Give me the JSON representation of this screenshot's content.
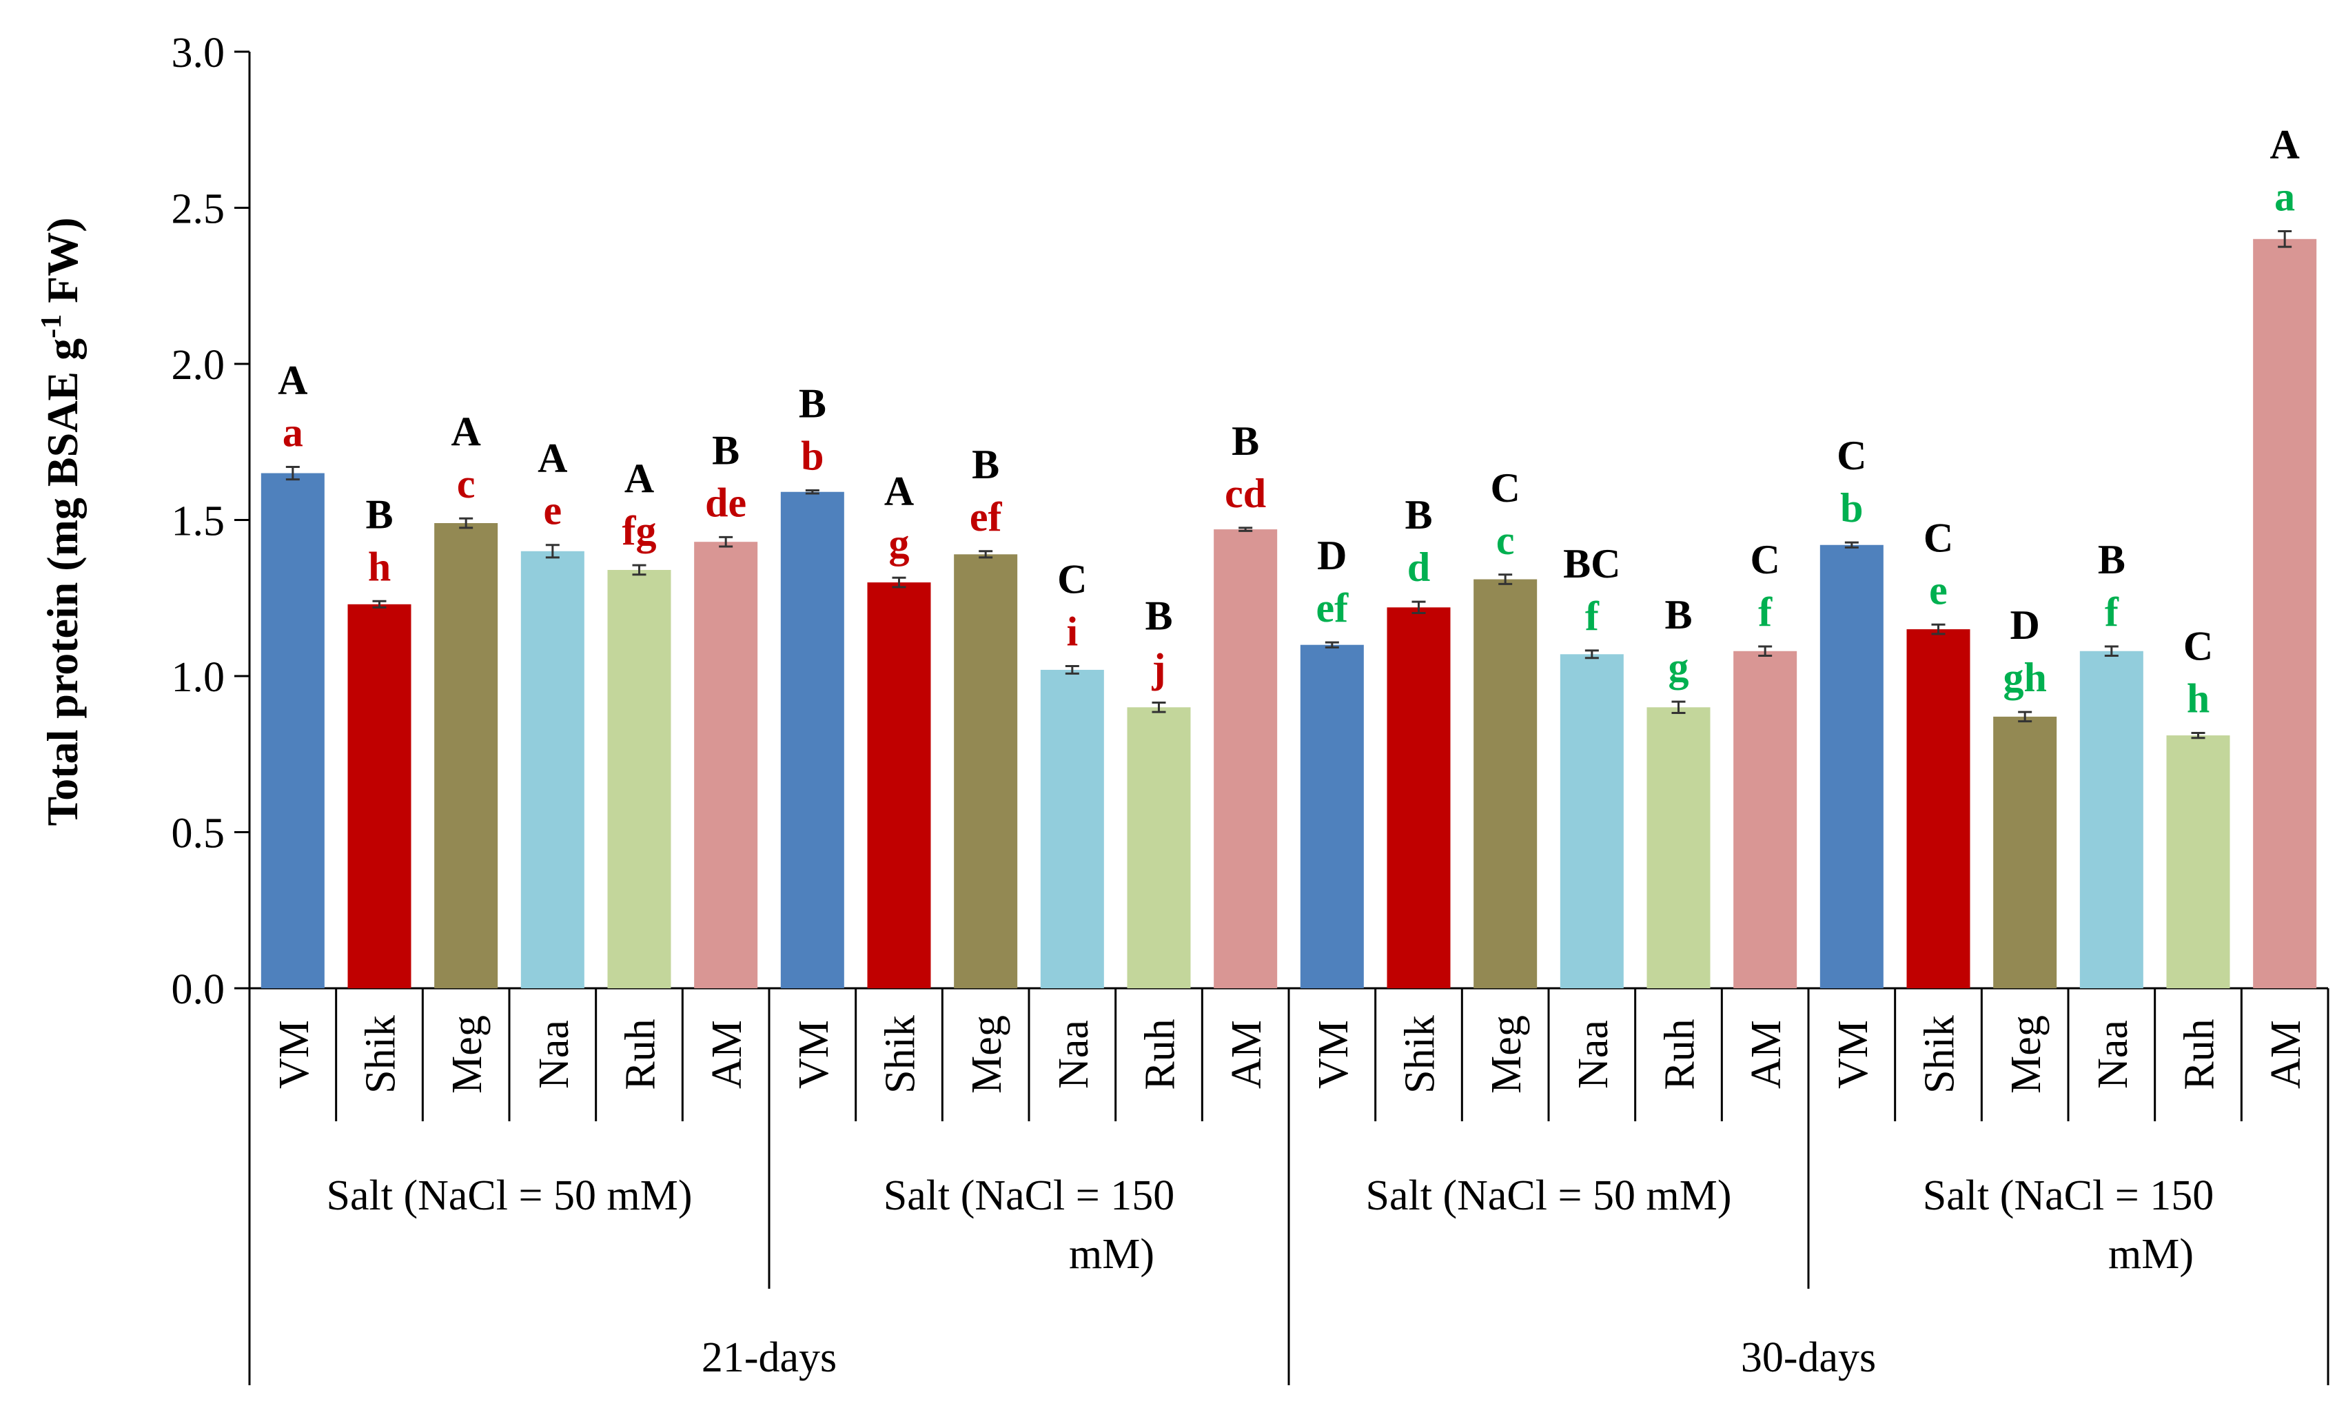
{
  "chart_data": {
    "type": "bar",
    "ylabel": "Total protein  (mg BSAE g",
    "ylabel_sup": "-1",
    "ylabel_end": " FW)",
    "ylim": [
      0,
      3.0
    ],
    "yticks": [
      "0.0",
      "0.5",
      "1.0",
      "1.5",
      "2.0",
      "2.5",
      "3.0"
    ],
    "categories": [
      "VM",
      "Shik",
      "Meg",
      "Naa",
      "Ruh",
      "AM",
      "VM",
      "Shik",
      "Meg",
      "Naa",
      "Ruh",
      "AM",
      "VM",
      "Shik",
      "Meg",
      "Naa",
      "Ruh",
      "AM",
      "VM",
      "Shik",
      "Meg",
      "Naa",
      "Ruh",
      "AM"
    ],
    "values": [
      1.65,
      1.23,
      1.49,
      1.4,
      1.34,
      1.43,
      1.59,
      1.3,
      1.39,
      1.02,
      0.9,
      1.47,
      1.1,
      1.22,
      1.31,
      1.07,
      0.9,
      1.08,
      1.42,
      1.15,
      0.87,
      1.08,
      0.81,
      2.4
    ],
    "errors": [
      0.02,
      0.01,
      0.015,
      0.02,
      0.015,
      0.015,
      0.005,
      0.015,
      0.01,
      0.012,
      0.015,
      0.005,
      0.008,
      0.018,
      0.015,
      0.012,
      0.018,
      0.015,
      0.008,
      0.015,
      0.015,
      0.015,
      0.008,
      0.025
    ],
    "bar_colors": [
      "#4f81bd",
      "#c00000",
      "#938953",
      "#92cddc",
      "#c3d69b",
      "#d99694",
      "#4f81bd",
      "#c00000",
      "#938953",
      "#92cddc",
      "#c3d69b",
      "#d99694",
      "#4f81bd",
      "#c00000",
      "#938953",
      "#92cddc",
      "#c3d69b",
      "#d99694",
      "#4f81bd",
      "#c00000",
      "#938953",
      "#92cddc",
      "#c3d69b",
      "#d99694"
    ],
    "upper_letters": [
      "A",
      "B",
      "A",
      "A",
      "A",
      "B",
      "B",
      "A",
      "B",
      "C",
      "B",
      "B",
      "D",
      "B",
      "C",
      "BC",
      "B",
      "C",
      "C",
      "C",
      "D",
      "B",
      "C",
      "A"
    ],
    "lower_letters": [
      "a",
      "h",
      "c",
      "e",
      "fg",
      "de",
      "b",
      "g",
      "ef",
      "i",
      "j",
      "cd",
      "ef",
      "d",
      "c",
      "f",
      "g",
      "f",
      "b",
      "e",
      "gh",
      "f",
      "h",
      "a"
    ],
    "lower_letter_colors": [
      "#c00000",
      "#00b050"
    ],
    "groups": [
      {
        "line1": "Salt  (NaCl = 50 mM)",
        "line2": ""
      },
      {
        "line1": "Salt  (NaCl = 150",
        "line2": "mM)"
      },
      {
        "line1": "Salt  (NaCl = 50 mM)",
        "line2": ""
      },
      {
        "line1": "Salt  (NaCl = 150",
        "line2": "mM)"
      }
    ],
    "periods": [
      "21-days",
      "30-days"
    ]
  }
}
